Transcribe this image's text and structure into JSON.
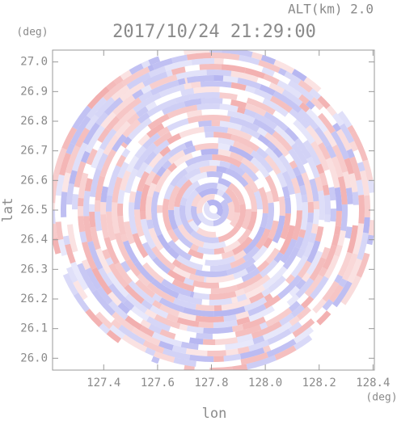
{
  "chart_data": {
    "type": "radar-ppi",
    "title": "2017/10/24 21:29:00",
    "altitude_label": "ALT(km)  2.0",
    "x_label": "lon",
    "y_label": "lat",
    "x_unit": "(deg)",
    "y_unit": "(deg)",
    "xlim": [
      127.21,
      128.405
    ],
    "ylim": [
      25.96,
      27.04
    ],
    "xticks": [
      127.4,
      127.6,
      127.8,
      {
        "value": 128.0,
        "label": "128.0"
      },
      128.2,
      128.4
    ],
    "yticks": [
      {
        "value": 26.0,
        "label": "26.0"
      },
      26.1,
      26.2,
      26.3,
      26.4,
      26.5,
      26.6,
      26.7,
      26.8,
      26.9,
      {
        "value": 27.0,
        "label": "27.0"
      }
    ]
  }
}
